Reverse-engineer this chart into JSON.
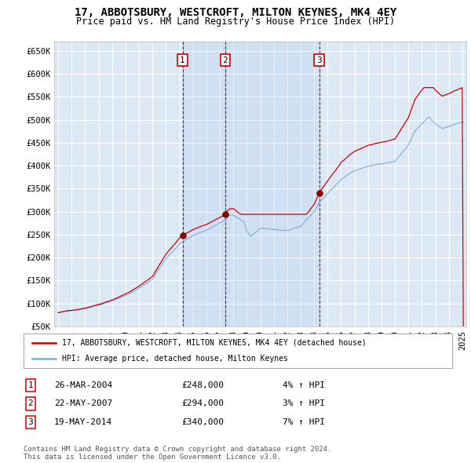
{
  "title": "17, ABBOTSBURY, WESTCROFT, MILTON KEYNES, MK4 4EY",
  "subtitle": "Price paid vs. HM Land Registry's House Price Index (HPI)",
  "background_color": "#ffffff",
  "plot_bg_color": "#dde8f5",
  "grid_color": "#ffffff",
  "red_line_color": "#cc0000",
  "blue_line_color": "#7aaedb",
  "sale_marker_color": "#880000",
  "annotation_box_color": "#cc0000",
  "vline_color": "#cc0000",
  "legend_line1": "17, ABBOTSBURY, WESTCROFT, MILTON KEYNES, MK4 4EY (detached house)",
  "legend_line2": "HPI: Average price, detached house, Milton Keynes",
  "transactions": [
    {
      "num": 1,
      "date": "26-MAR-2004",
      "price": "£248,000",
      "change": "4% ↑ HPI"
    },
    {
      "num": 2,
      "date": "22-MAY-2007",
      "price": "£294,000",
      "change": "3% ↑ HPI"
    },
    {
      "num": 3,
      "date": "19-MAY-2014",
      "price": "£340,000",
      "change": "7% ↑ HPI"
    }
  ],
  "footer": "Contains HM Land Registry data © Crown copyright and database right 2024.\nThis data is licensed under the Open Government Licence v3.0.",
  "sale_years": [
    2004.23,
    2007.39,
    2014.38
  ],
  "sale_values": [
    248000,
    294000,
    340000
  ],
  "sale_labels": [
    "1",
    "2",
    "3"
  ],
  "vline_years": [
    2004.23,
    2007.39,
    2014.38
  ],
  "ylim": [
    50000,
    670000
  ],
  "yticks": [
    50000,
    100000,
    150000,
    200000,
    250000,
    300000,
    350000,
    400000,
    450000,
    500000,
    550000,
    600000,
    650000
  ],
  "ytick_labels": [
    "£50K",
    "£100K",
    "£150K",
    "£200K",
    "£250K",
    "£300K",
    "£350K",
    "£400K",
    "£450K",
    "£500K",
    "£550K",
    "£600K",
    "£650K"
  ]
}
